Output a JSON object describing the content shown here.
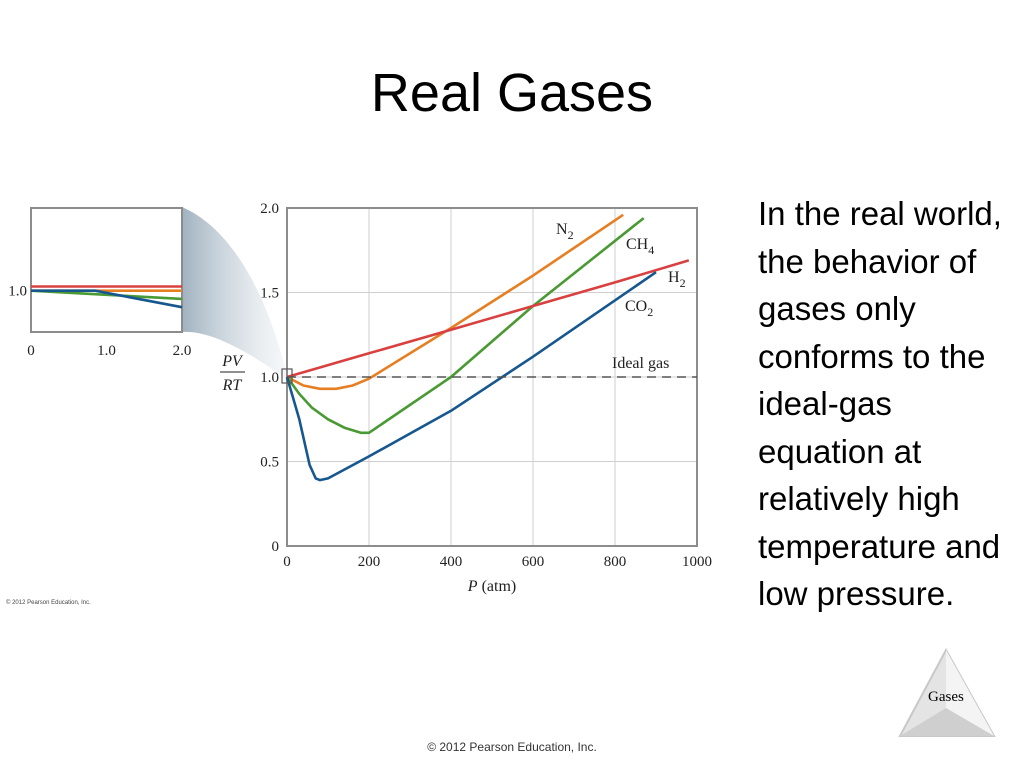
{
  "slide": {
    "title": "Real Gases",
    "body_text": "In the real world, the behavior of gases only conforms to the ideal-gas equation at relatively high temperature and low pressure.",
    "footer_label": "Gases",
    "copyright": "© 2012 Pearson Education, Inc.",
    "chart_copyright": "© 2012 Pearson Education, Inc."
  },
  "colors": {
    "N2": "#e67e22",
    "CH4": "#4a9a34",
    "H2": "#d94040",
    "CO2": "#17578f",
    "ideal": "#555555",
    "frame": "#8c8c8c",
    "grid": "#cfcfcf"
  },
  "chart_data": [
    {
      "type": "line",
      "title": "",
      "xlabel_var": "P",
      "xlabel_unit": "(atm)",
      "ylabel_top": "PV",
      "ylabel_bottom": "RT",
      "xlim": [
        0,
        1000
      ],
      "ylim": [
        0,
        2.0
      ],
      "xticks": [
        "0",
        "200",
        "400",
        "600",
        "800",
        "1000"
      ],
      "yticks": [
        "0",
        "0.5",
        "1.0",
        "1.5",
        "2.0"
      ],
      "grid": true,
      "annotation": "Ideal gas",
      "series": [
        {
          "name": "N",
          "sub": "2",
          "color_key": "N2",
          "x": [
            0,
            40,
            80,
            120,
            160,
            200,
            400,
            600,
            820
          ],
          "y": [
            1.0,
            0.95,
            0.93,
            0.93,
            0.95,
            0.99,
            1.29,
            1.6,
            1.96
          ]
        },
        {
          "name": "CH",
          "sub": "4",
          "color_key": "CH4",
          "x": [
            0,
            30,
            60,
            100,
            140,
            180,
            200,
            400,
            600,
            870
          ],
          "y": [
            1.0,
            0.9,
            0.82,
            0.75,
            0.7,
            0.67,
            0.67,
            1.0,
            1.42,
            1.94
          ]
        },
        {
          "name": "H",
          "sub": "2",
          "color_key": "H2",
          "x": [
            0,
            200,
            400,
            600,
            800,
            980
          ],
          "y": [
            1.0,
            1.14,
            1.28,
            1.42,
            1.56,
            1.69
          ]
        },
        {
          "name": "CO",
          "sub": "2",
          "color_key": "CO2",
          "x": [
            0,
            30,
            55,
            70,
            80,
            100,
            200,
            400,
            600,
            900
          ],
          "y": [
            1.0,
            0.75,
            0.48,
            0.4,
            0.39,
            0.4,
            0.53,
            0.8,
            1.12,
            1.62
          ]
        },
        {
          "name": "Ideal gas",
          "color_key": "ideal",
          "dashed": true,
          "x": [
            0,
            1000
          ],
          "y": [
            1.0,
            1.0
          ]
        }
      ]
    },
    {
      "type": "line",
      "title": "",
      "xlim": [
        0,
        2.0
      ],
      "ylim": [
        0.99,
        1.02
      ],
      "xticks": [
        "0",
        "1.0",
        "2.0"
      ],
      "ytick_label": "1.0",
      "series": [
        {
          "color_key": "N2",
          "x": [
            0,
            2.0
          ],
          "y": [
            1.0,
            1.0
          ]
        },
        {
          "color_key": "H2",
          "x": [
            0,
            2.0
          ],
          "y": [
            1.001,
            1.001
          ]
        },
        {
          "color_key": "CH4",
          "x": [
            0,
            1.0,
            2.0
          ],
          "y": [
            1.0,
            0.999,
            0.998
          ]
        },
        {
          "color_key": "CO2",
          "x": [
            0,
            0.85,
            2.0
          ],
          "y": [
            1.0,
            1.0,
            0.996
          ]
        }
      ]
    }
  ]
}
